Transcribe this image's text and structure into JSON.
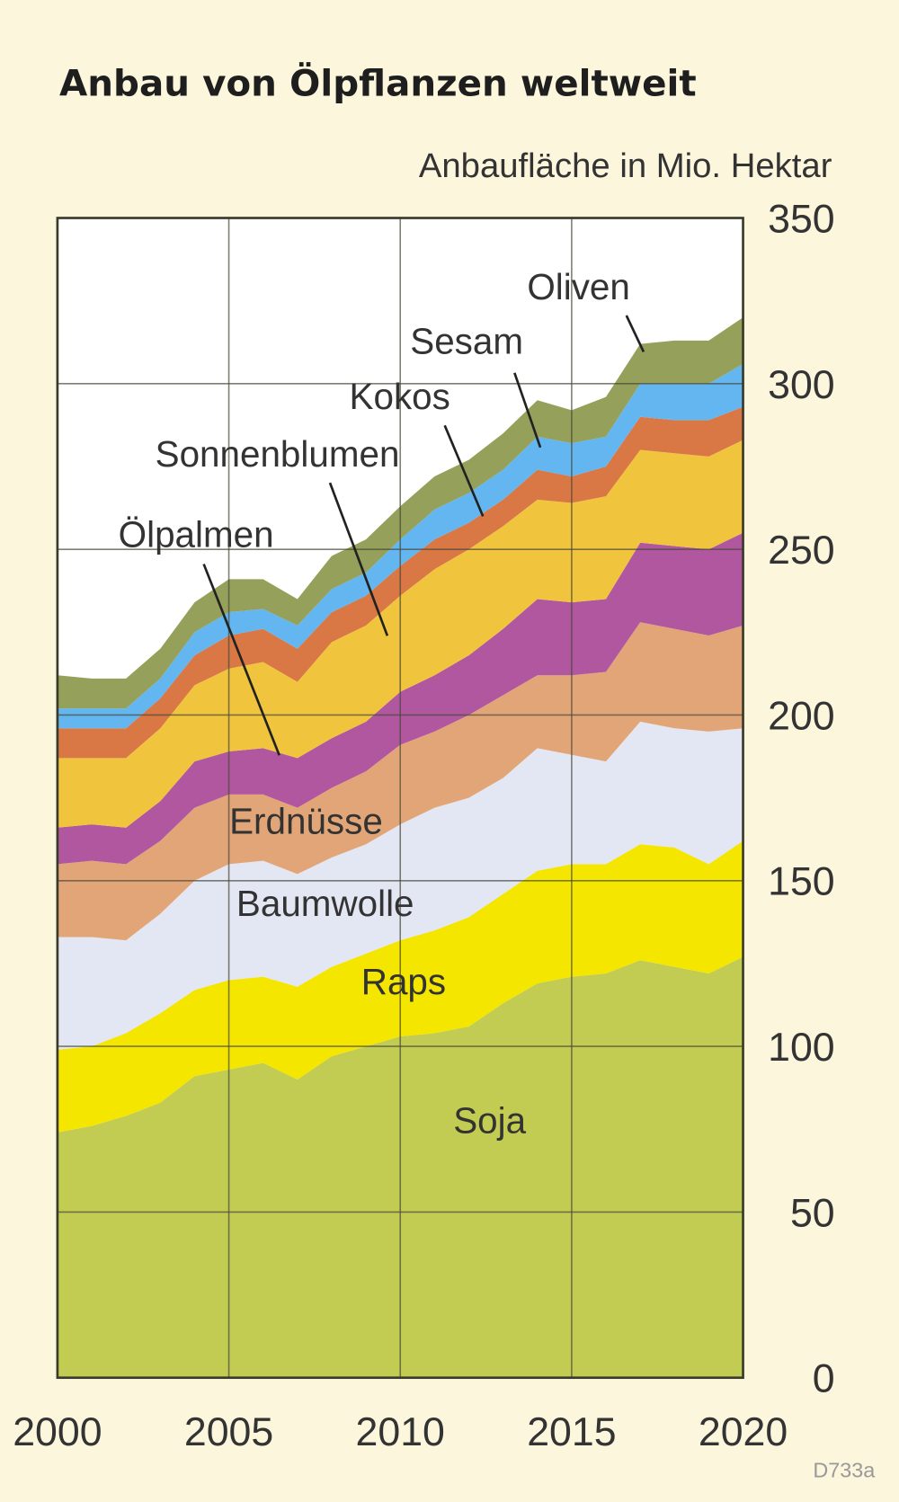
{
  "chart_data": {
    "type": "area",
    "stacked": true,
    "title": "Anbau von Ölpflanzen weltweit",
    "ylabel": "Anbaufläche in Mio. Hektar",
    "xlabel": "",
    "source_code": "D733a",
    "x": [
      2000,
      2001,
      2002,
      2003,
      2004,
      2005,
      2006,
      2007,
      2008,
      2009,
      2010,
      2011,
      2012,
      2013,
      2014,
      2015,
      2016,
      2017,
      2018,
      2019,
      2020
    ],
    "xlim": [
      2000,
      2020
    ],
    "ylim": [
      0,
      350
    ],
    "x_ticks": [
      "2000",
      "2005",
      "2010",
      "2015",
      "2020"
    ],
    "y_ticks": [
      "0",
      "50",
      "100",
      "150",
      "200",
      "250",
      "300",
      "350"
    ],
    "grid": true,
    "legend": "inline labels",
    "series": [
      {
        "name": "Soja",
        "color": "#c2cc52",
        "values": [
          74,
          76,
          79,
          83,
          91,
          93,
          95,
          90,
          97,
          100,
          103,
          104,
          106,
          113,
          119,
          121,
          122,
          126,
          124,
          122,
          127
        ]
      },
      {
        "name": "Raps",
        "color": "#f5e600",
        "values": [
          25,
          24,
          25,
          27,
          26,
          27,
          26,
          28,
          27,
          28,
          29,
          31,
          33,
          33,
          34,
          34,
          33,
          35,
          36,
          33,
          35
        ]
      },
      {
        "name": "Baumwolle",
        "color": "#e3e6f3",
        "values": [
          34,
          33,
          28,
          30,
          33,
          35,
          35,
          34,
          33,
          33,
          35,
          37,
          36,
          35,
          37,
          33,
          31,
          37,
          36,
          40,
          34
        ]
      },
      {
        "name": "Erdnüsse",
        "color": "#e2a577",
        "values": [
          22,
          23,
          23,
          22,
          22,
          21,
          20,
          20,
          21,
          22,
          24,
          23,
          25,
          25,
          22,
          24,
          27,
          30,
          30,
          29,
          31
        ]
      },
      {
        "name": "Ölpalmen",
        "color": "#b0579f",
        "values": [
          11,
          11,
          11,
          12,
          14,
          13,
          14,
          15,
          15,
          15,
          16,
          17,
          18,
          20,
          23,
          22,
          22,
          24,
          25,
          26,
          28
        ]
      },
      {
        "name": "Sonnenblumen",
        "color": "#f0c53d",
        "values": [
          21,
          20,
          21,
          22,
          23,
          25,
          26,
          23,
          29,
          29,
          29,
          32,
          32,
          31,
          30,
          30,
          31,
          28,
          28,
          28,
          28
        ]
      },
      {
        "name": "Kokos",
        "color": "#d97745",
        "values": [
          9,
          9,
          9,
          9,
          9,
          10,
          10,
          10,
          9,
          9,
          9,
          9,
          8,
          8,
          9,
          8,
          9,
          10,
          10,
          11,
          10
        ]
      },
      {
        "name": "Sesam",
        "color": "#63b6f0",
        "values": [
          6,
          6,
          6,
          6,
          7,
          7,
          6,
          7,
          7,
          7,
          8,
          9,
          9,
          9,
          10,
          10,
          9,
          10,
          11,
          11,
          13
        ]
      },
      {
        "name": "Oliven",
        "color": "#95a05a",
        "values": [
          10,
          9,
          9,
          9,
          9,
          10,
          9,
          8,
          10,
          10,
          10,
          10,
          10,
          11,
          11,
          10,
          12,
          12,
          13,
          13,
          14
        ]
      }
    ]
  }
}
